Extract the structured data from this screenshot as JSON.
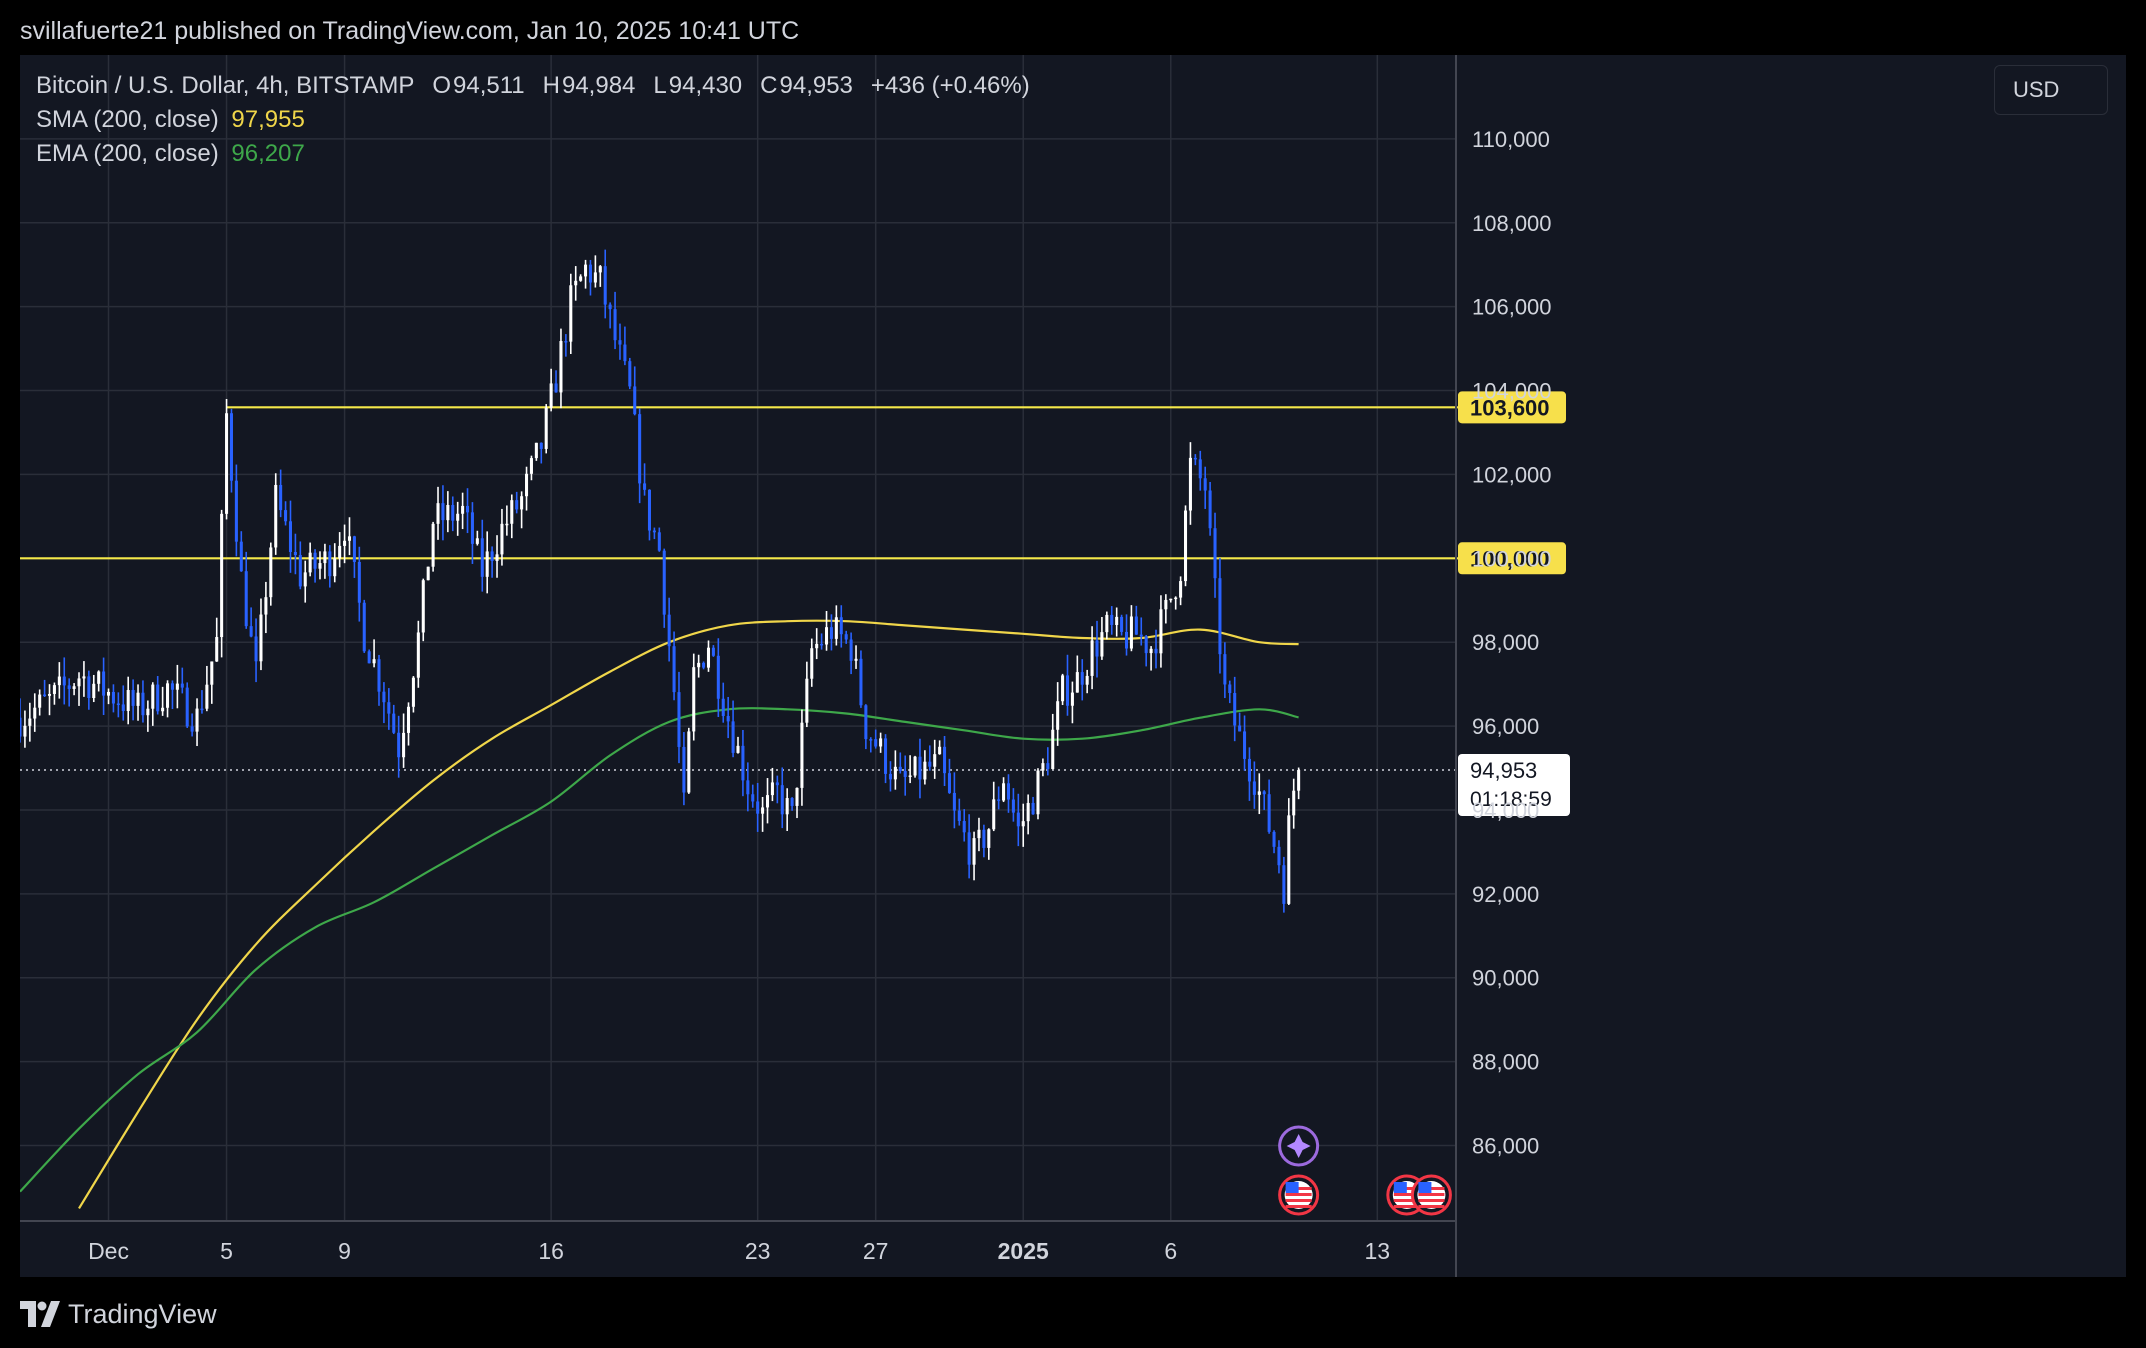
{
  "publisher": "svillafuerte21 published on TradingView.com, Jan 10, 2025 10:41 UTC",
  "footer_brand": "TradingView",
  "currency": "USD",
  "colors": {
    "background": "#131722",
    "grid": "#2a2e39",
    "bull": "#ffffff",
    "bear": "#2962ff",
    "sma": "#f0d64a",
    "ema": "#3ea84a",
    "level": "#f5e84a",
    "level_label_bg": "#f7e04b"
  },
  "legend": {
    "symbol": "Bitcoin / U.S. Dollar, 4h, BITSTAMP",
    "open_key": "O",
    "open": "94,511",
    "high_key": "H",
    "high": "94,984",
    "low_key": "L",
    "low": "94,430",
    "close_key": "C",
    "close": "94,953",
    "change": "+436 (+0.46%)",
    "sma_label": "SMA (200, close)",
    "sma_value": "97,955",
    "ema_label": "EMA (200, close)",
    "ema_value": "96,207"
  },
  "chart_data": {
    "type": "candlestick",
    "symbol": "Bitcoin / U.S. Dollar",
    "interval": "4h",
    "exchange": "BITSTAMP",
    "ylim": [
      84200,
      112000
    ],
    "y_ticks": [
      86000,
      88000,
      90000,
      92000,
      94000,
      96000,
      98000,
      100000,
      102000,
      104000,
      106000,
      108000,
      110000
    ],
    "y_tick_labels": [
      "86,000",
      "88,000",
      "90,000",
      "92,000",
      "94,000",
      "96,000",
      "98,000",
      "100,000",
      "102,000",
      "104,000",
      "106,000",
      "108,000",
      "110,000"
    ],
    "x_range": [
      "2024-11-28T00:00",
      "2025-01-15T16:00"
    ],
    "x_ticks": [
      {
        "label": "Dec",
        "date": "2024-12-01T00:00",
        "bold": false
      },
      {
        "label": "5",
        "date": "2024-12-05T00:00",
        "bold": false
      },
      {
        "label": "9",
        "date": "2024-12-09T00:00",
        "bold": false
      },
      {
        "label": "16",
        "date": "2024-12-16T00:00",
        "bold": false
      },
      {
        "label": "23",
        "date": "2024-12-23T00:00",
        "bold": false
      },
      {
        "label": "27",
        "date": "2024-12-27T00:00",
        "bold": false
      },
      {
        "label": "2025",
        "date": "2025-01-01T00:00",
        "bold": true
      },
      {
        "label": "6",
        "date": "2025-01-06T00:00",
        "bold": false
      },
      {
        "label": "13",
        "date": "2025-01-13T00:00",
        "bold": false
      }
    ],
    "horizontal_levels": [
      {
        "value": 103600,
        "label": "103,600"
      },
      {
        "value": 100000,
        "label": "100,000"
      }
    ],
    "current_price": {
      "value": 94953,
      "label": "94,953",
      "countdown": "01:18:59"
    },
    "series": [
      {
        "name": "SMA (200, close)",
        "color": "#f0d64a",
        "points": [
          [
            "2024-11-30T00:00",
            84500
          ],
          [
            "2024-12-02T00:00",
            86800
          ],
          [
            "2024-12-04T00:00",
            89000
          ],
          [
            "2024-12-06T00:00",
            90800
          ],
          [
            "2024-12-08T00:00",
            92200
          ],
          [
            "2024-12-10T00:00",
            93500
          ],
          [
            "2024-12-12T00:00",
            94700
          ],
          [
            "2024-12-14T00:00",
            95700
          ],
          [
            "2024-12-16T00:00",
            96500
          ],
          [
            "2024-12-18T00:00",
            97300
          ],
          [
            "2024-12-20T00:00",
            98000
          ],
          [
            "2024-12-22T00:00",
            98400
          ],
          [
            "2024-12-24T00:00",
            98500
          ],
          [
            "2024-12-26T00:00",
            98500
          ],
          [
            "2024-12-28T00:00",
            98400
          ],
          [
            "2024-12-30T00:00",
            98300
          ],
          [
            "2025-01-01T00:00",
            98200
          ],
          [
            "2025-01-03T00:00",
            98100
          ],
          [
            "2025-01-05T00:00",
            98100
          ],
          [
            "2025-01-07T00:00",
            98300
          ],
          [
            "2025-01-09T00:00",
            98000
          ],
          [
            "2025-01-10T08:00",
            97955
          ]
        ]
      },
      {
        "name": "EMA (200, close)",
        "color": "#3ea84a",
        "points": [
          [
            "2024-11-28T00:00",
            84900
          ],
          [
            "2024-11-30T00:00",
            86400
          ],
          [
            "2024-12-02T00:00",
            87700
          ],
          [
            "2024-12-04T00:00",
            88700
          ],
          [
            "2024-12-06T00:00",
            90200
          ],
          [
            "2024-12-08T00:00",
            91200
          ],
          [
            "2024-12-10T00:00",
            91800
          ],
          [
            "2024-12-12T00:00",
            92600
          ],
          [
            "2024-12-14T00:00",
            93400
          ],
          [
            "2024-12-16T00:00",
            94200
          ],
          [
            "2024-12-18T00:00",
            95300
          ],
          [
            "2024-12-20T00:00",
            96100
          ],
          [
            "2024-12-22T00:00",
            96400
          ],
          [
            "2024-12-24T00:00",
            96400
          ],
          [
            "2024-12-26T00:00",
            96300
          ],
          [
            "2024-12-28T00:00",
            96100
          ],
          [
            "2024-12-30T00:00",
            95900
          ],
          [
            "2025-01-01T00:00",
            95700
          ],
          [
            "2025-01-03T00:00",
            95700
          ],
          [
            "2025-01-05T00:00",
            95900
          ],
          [
            "2025-01-07T00:00",
            96200
          ],
          [
            "2025-01-09T00:00",
            96400
          ],
          [
            "2025-01-10T08:00",
            96207
          ]
        ]
      }
    ],
    "price_anchors": [
      [
        "2024-11-28T00:00",
        96200
      ],
      [
        "2024-11-29T00:00",
        96600
      ],
      [
        "2024-11-30T00:00",
        97200
      ],
      [
        "2024-12-01T00:00",
        96800
      ],
      [
        "2024-12-02T00:00",
        96400
      ],
      [
        "2024-12-03T00:00",
        96900
      ],
      [
        "2024-12-04T00:00",
        96200
      ],
      [
        "2024-12-04T16:00",
        98000
      ],
      [
        "2024-12-05T00:00",
        103400
      ],
      [
        "2024-12-05T12:00",
        99500
      ],
      [
        "2024-12-06T00:00",
        97200
      ],
      [
        "2024-12-06T16:00",
        101400
      ],
      [
        "2024-12-07T12:00",
        99600
      ],
      [
        "2024-12-08T12:00",
        100000
      ],
      [
        "2024-12-09T00:00",
        100800
      ],
      [
        "2024-12-09T16:00",
        98200
      ],
      [
        "2024-12-10T08:00",
        96800
      ],
      [
        "2024-12-10T20:00",
        95500
      ],
      [
        "2024-12-11T12:00",
        98100
      ],
      [
        "2024-12-12T00:00",
        100900
      ],
      [
        "2024-12-13T00:00",
        101100
      ],
      [
        "2024-12-13T16:00",
        99700
      ],
      [
        "2024-12-14T08:00",
        100700
      ],
      [
        "2024-12-15T00:00",
        101400
      ],
      [
        "2024-12-15T16:00",
        102700
      ],
      [
        "2024-12-16T04:00",
        104300
      ],
      [
        "2024-12-16T16:00",
        106100
      ],
      [
        "2024-12-17T04:00",
        106900
      ],
      [
        "2024-12-17T16:00",
        106600
      ],
      [
        "2024-12-18T04:00",
        105200
      ],
      [
        "2024-12-18T16:00",
        103900
      ],
      [
        "2024-12-19T04:00",
        101300
      ],
      [
        "2024-12-19T16:00",
        100200
      ],
      [
        "2024-12-20T04:00",
        96800
      ],
      [
        "2024-12-20T12:00",
        94000
      ],
      [
        "2024-12-20T20:00",
        97200
      ],
      [
        "2024-12-21T08:00",
        98000
      ],
      [
        "2024-12-22T00:00",
        96200
      ],
      [
        "2024-12-22T16:00",
        94600
      ],
      [
        "2024-12-23T04:00",
        93900
      ],
      [
        "2024-12-23T16:00",
        94400
      ],
      [
        "2024-12-24T04:00",
        93800
      ],
      [
        "2024-12-24T20:00",
        97800
      ],
      [
        "2024-12-25T12:00",
        98300
      ],
      [
        "2024-12-26T04:00",
        97900
      ],
      [
        "2024-12-26T16:00",
        96000
      ],
      [
        "2024-12-27T08:00",
        95200
      ],
      [
        "2024-12-27T20:00",
        94600
      ],
      [
        "2024-12-28T12:00",
        94900
      ],
      [
        "2024-12-29T04:00",
        95100
      ],
      [
        "2024-12-29T16:00",
        93800
      ],
      [
        "2024-12-30T08:00",
        92900
      ],
      [
        "2024-12-30T20:00",
        93600
      ],
      [
        "2024-12-31T08:00",
        94800
      ],
      [
        "2024-12-31T20:00",
        93500
      ],
      [
        "2025-01-01T08:00",
        94300
      ],
      [
        "2025-01-01T20:00",
        95300
      ],
      [
        "2025-01-02T08:00",
        96800
      ],
      [
        "2025-01-02T20:00",
        97100
      ],
      [
        "2025-01-03T08:00",
        97800
      ],
      [
        "2025-01-03T20:00",
        98300
      ],
      [
        "2025-01-04T08:00",
        98100
      ],
      [
        "2025-01-04T20:00",
        98200
      ],
      [
        "2025-01-05T08:00",
        97900
      ],
      [
        "2025-01-05T20:00",
        98700
      ],
      [
        "2025-01-06T08:00",
        99800
      ],
      [
        "2025-01-06T16:00",
        102200
      ],
      [
        "2025-01-07T04:00",
        101700
      ],
      [
        "2025-01-07T12:00",
        99100
      ],
      [
        "2025-01-07T20:00",
        96800
      ],
      [
        "2025-01-08T08:00",
        95700
      ],
      [
        "2025-01-08T20:00",
        94800
      ],
      [
        "2025-01-09T08:00",
        93600
      ],
      [
        "2025-01-09T16:00",
        92800
      ],
      [
        "2025-01-09T20:00",
        92200
      ],
      [
        "2025-01-10T00:00",
        93600
      ],
      [
        "2025-01-10T04:00",
        94511
      ],
      [
        "2025-01-10T08:00",
        94953
      ]
    ],
    "event_markers": [
      {
        "icon": "star-event-icon",
        "date": "2025-01-10T08:00"
      },
      {
        "icon": "us-flag-icon",
        "date": "2025-01-10T08:00"
      },
      {
        "icon": "us-flag-icon",
        "date": "2025-01-14T00:00"
      },
      {
        "icon": "us-flag-icon",
        "date": "2025-01-14T20:00"
      }
    ]
  }
}
